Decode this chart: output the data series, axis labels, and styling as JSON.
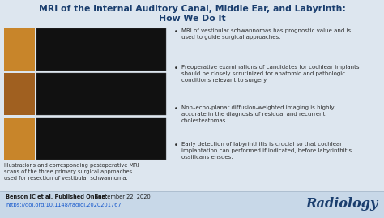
{
  "title_line1": "MRI of the Internal Auditory Canal, Middle Ear, and Labyrinth:",
  "title_line2": "How We Do It",
  "title_color": "#1A3E6E",
  "title_fontsize": 7.8,
  "bg_color": "#DDE6EF",
  "bottom_bar_color": "#C8D8E8",
  "bullet_points": [
    "MRI of vestibular schwannomas has prognostic value and is\nused to guide surgical approaches.",
    "Preoperative examinations of candidates for cochlear implants\nshould be closely scrutinized for anatomic and pathologic\nconditions relevant to surgery.",
    "Non–echo-planar diffusion-weighted imaging is highly\naccurate in the diagnosis of residual and recurrent\ncholesteatomas.",
    "Early detection of labyrinthitis is crucial so that cochlear\nimplantation can performed if indicated, before labyrinthitis\nossificans ensues."
  ],
  "bullet_color": "#2C2C2C",
  "bullet_fontsize": 5.0,
  "caption": "Illustrations and corresponding postoperative MRI\nscans of the three primary surgical approaches\nused for resection of vestibular schwannoma.",
  "caption_fontsize": 4.8,
  "caption_color": "#2C2C2C",
  "author_bold": "Benson JC et al. Published Online:",
  "author_normal": " September 22, 2020",
  "author_fontsize": 4.8,
  "author_color": "#1a1a1a",
  "doi_text": "https://doi.org/10.1148/radiol.2020201767",
  "doi_color": "#1155CC",
  "doi_fontsize": 4.8,
  "radiology_text": "Radiology",
  "radiology_color": "#1A3E6E",
  "radiology_fontsize": 11.5,
  "mri_bg": "#111111",
  "illus_colors": [
    "#C8852A",
    "#A06020",
    "#C8852A"
  ]
}
